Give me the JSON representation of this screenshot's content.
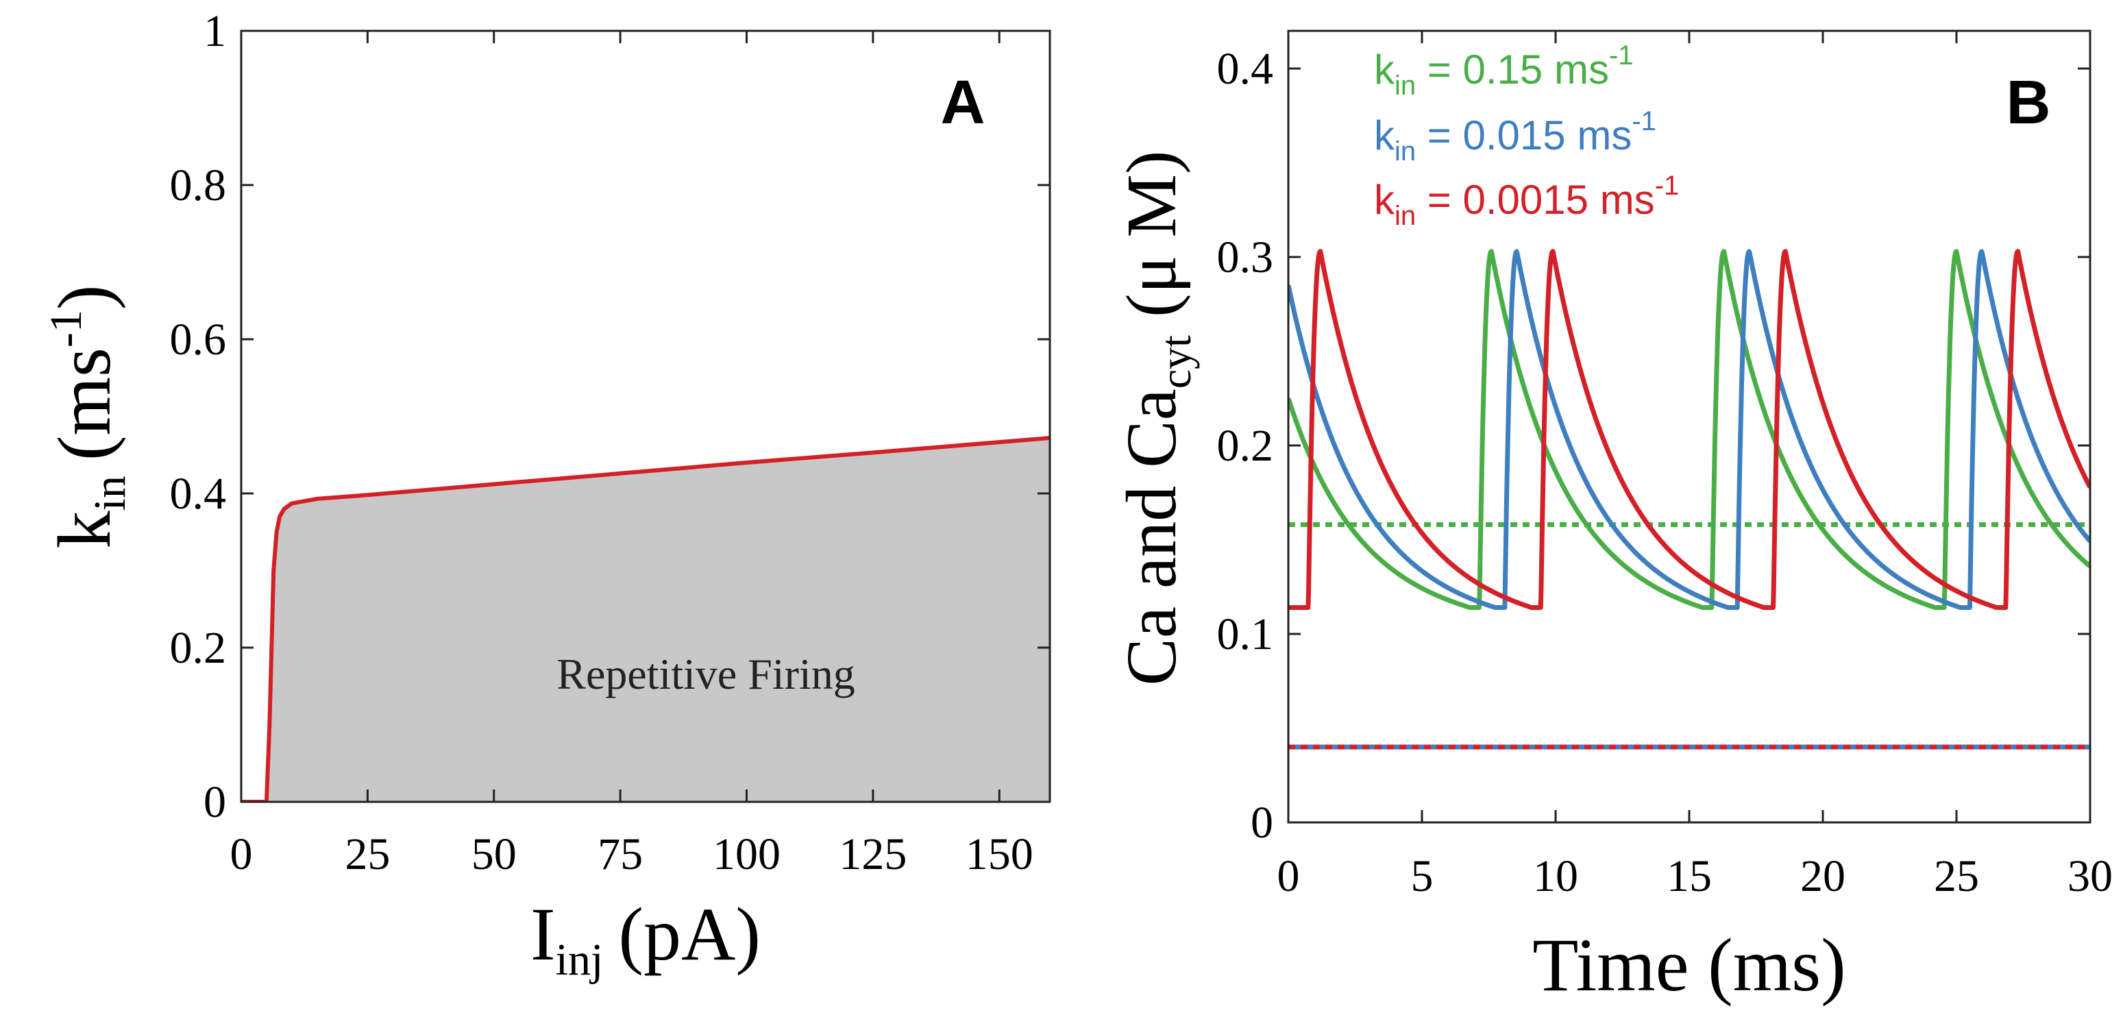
{
  "chart_data": [
    {
      "type": "area",
      "panel_label": "A",
      "xlabel_main": "I",
      "xlabel_sub": "inj",
      "xlabel_unit": "(pA)",
      "ylabel_main": "k",
      "ylabel_sub": "in",
      "ylabel_unit_open": "(ms",
      "ylabel_unit_sup": "-1",
      "ylabel_unit_close": ")",
      "xlim": [
        0,
        160
      ],
      "ylim": [
        0,
        1
      ],
      "xticks": [
        0,
        25,
        50,
        75,
        100,
        125,
        150
      ],
      "yticks": [
        0,
        0.2,
        0.4,
        0.6,
        0.8,
        1
      ],
      "xtick_labels": [
        "0",
        "25",
        "50",
        "75",
        "100",
        "125",
        "150"
      ],
      "ytick_labels": [
        "0",
        "0.2",
        "0.4",
        "0.6",
        "0.8",
        "1"
      ],
      "region_label": "Repetitive Firing",
      "boundary": {
        "color": "#d42027",
        "fill": "#c8c8c8",
        "x": [
          0,
          5,
          5.6,
          6.0,
          6.4,
          7.0,
          7.6,
          8.5,
          10,
          15,
          25,
          50,
          75,
          100,
          125,
          160
        ],
        "y": [
          0,
          0,
          0.1,
          0.2,
          0.3,
          0.35,
          0.37,
          0.38,
          0.387,
          0.393,
          0.398,
          0.412,
          0.426,
          0.44,
          0.453,
          0.472
        ]
      }
    },
    {
      "type": "line",
      "panel_label": "B",
      "xlabel": "Time (ms)",
      "ylabel_main": "Ca and Ca",
      "ylabel_sub": "cyt",
      "ylabel_unit": "(μ M)",
      "xlim": [
        0,
        30
      ],
      "ylim": [
        0,
        0.42
      ],
      "xticks": [
        0,
        5,
        10,
        15,
        20,
        25,
        30
      ],
      "yticks": [
        0,
        0.1,
        0.2,
        0.3,
        0.4
      ],
      "xtick_labels": [
        "0",
        "5",
        "10",
        "15",
        "20",
        "25",
        "30"
      ],
      "ytick_labels": [
        "0",
        "0.1",
        "0.2",
        "0.3",
        "0.4"
      ],
      "oscillation": {
        "period": 8.7,
        "min": 0.114,
        "peak": 0.303,
        "decay_tau": 2.6
      },
      "series": [
        {
          "name": "k",
          "sub": "in",
          "value_text": " = 0.15 ms",
          "sup": "-1",
          "color": "#4aae47",
          "first_rise": 7.15,
          "start_value": 0.225,
          "baseline": 0.158,
          "baseline_style": "dotted"
        },
        {
          "name": "k",
          "sub": "in",
          "value_text": " = 0.015 ms",
          "sup": "-1",
          "color": "#3f7fc0",
          "first_rise": 8.1,
          "start_value": 0.285,
          "baseline": 0.04,
          "baseline_style": "solid"
        },
        {
          "name": "k",
          "sub": "in",
          "value_text": " = 0.0015 ms",
          "sup": "-1",
          "color": "#d42027",
          "first_rise": 0.75,
          "start_value": 0.114,
          "baseline": 0.04,
          "baseline_style": "dotted"
        }
      ]
    }
  ]
}
